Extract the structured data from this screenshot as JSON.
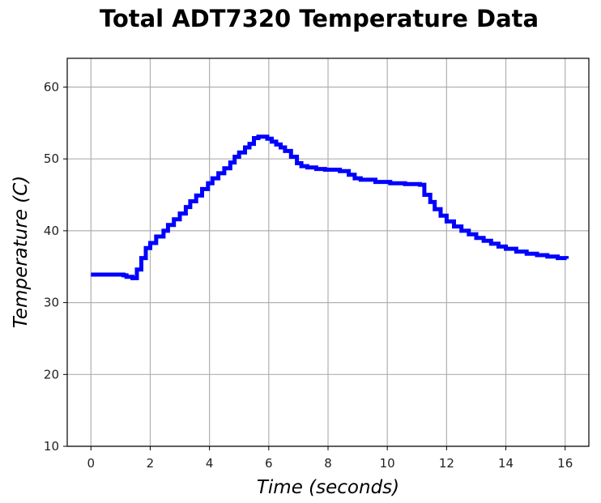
{
  "chart_data": {
    "type": "line",
    "title": "Total ADT7320 Temperature Data",
    "xlabel": "Time (seconds)",
    "ylabel": "Temperature (C)",
    "xlim": [
      -0.8,
      16.8
    ],
    "ylim": [
      10,
      64
    ],
    "xticks": [
      "0",
      "2",
      "4",
      "6",
      "8",
      "10",
      "12",
      "14",
      "16"
    ],
    "yticks": [
      "10",
      "20",
      "30",
      "40",
      "50",
      "60"
    ],
    "grid": true,
    "legend": "none",
    "series": [
      {
        "color": "#0000ff",
        "step": true,
        "x": [
          0,
          1.1,
          1.2,
          1.4,
          1.55,
          1.7,
          1.85,
          2.0,
          2.2,
          2.45,
          2.6,
          2.8,
          3.0,
          3.2,
          3.35,
          3.55,
          3.75,
          3.95,
          4.1,
          4.3,
          4.5,
          4.7,
          4.85,
          5.0,
          5.2,
          5.35,
          5.5,
          5.65,
          5.8,
          5.95,
          6.1,
          6.25,
          6.4,
          6.55,
          6.75,
          6.95,
          7.1,
          7.3,
          7.6,
          7.9,
          8.4,
          8.7,
          8.9,
          9.1,
          9.6,
          10.1,
          10.6,
          11.1,
          11.25,
          11.45,
          11.6,
          11.8,
          12.0,
          12.25,
          12.5,
          12.75,
          13.0,
          13.25,
          13.5,
          13.75,
          14.0,
          14.35,
          14.7,
          15.05,
          15.4,
          15.75,
          16.05
        ],
        "y": [
          33.9,
          33.8,
          33.6,
          33.4,
          34.6,
          36.2,
          37.6,
          38.3,
          39.2,
          40.0,
          40.8,
          41.6,
          42.4,
          43.3,
          44.1,
          44.9,
          45.8,
          46.6,
          47.3,
          48.0,
          48.7,
          49.5,
          50.3,
          50.9,
          51.6,
          52.1,
          52.9,
          53.1,
          53.1,
          52.8,
          52.4,
          52.0,
          51.6,
          51.1,
          50.3,
          49.4,
          49.0,
          48.8,
          48.6,
          48.5,
          48.3,
          47.8,
          47.3,
          47.1,
          46.8,
          46.6,
          46.5,
          46.4,
          45.0,
          44.0,
          43.0,
          42.1,
          41.3,
          40.6,
          40.0,
          39.5,
          39.0,
          38.6,
          38.2,
          37.8,
          37.5,
          37.1,
          36.8,
          36.6,
          36.4,
          36.2,
          36.1
        ]
      }
    ]
  }
}
